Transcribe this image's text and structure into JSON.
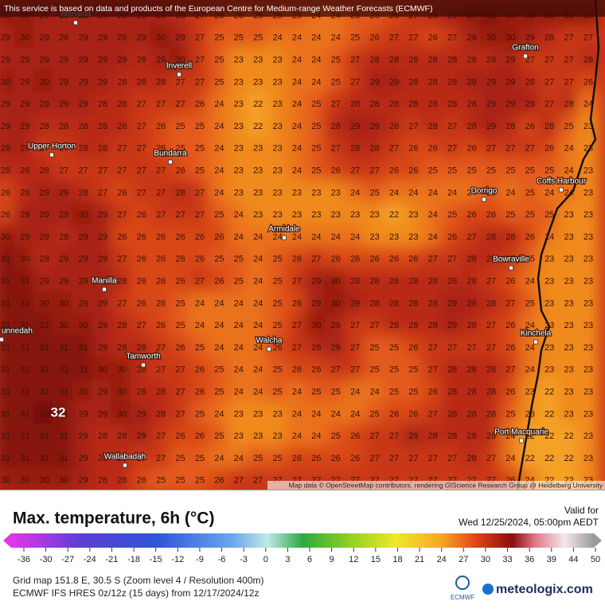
{
  "banner": "This service is based on data and products of the European Centre for Medium-range Weather Forecasts (ECMWF)",
  "attribution": "Map data © OpenStreetMap contributors, rendering GIScience Research Group @ Heidelberg University",
  "map": {
    "grid": [
      [
        30,
        30,
        29,
        29,
        29,
        29,
        29,
        29,
        29,
        28,
        27,
        26,
        25,
        25,
        25,
        25,
        24,
        24,
        25,
        25,
        26,
        27,
        28,
        29,
        30,
        31,
        30,
        30,
        30,
        30,
        30
      ],
      [
        29,
        30,
        29,
        29,
        29,
        29,
        29,
        29,
        30,
        29,
        27,
        25,
        25,
        25,
        24,
        24,
        24,
        24,
        25,
        26,
        27,
        27,
        26,
        27,
        29,
        30,
        30,
        29,
        28,
        27,
        27
      ],
      [
        29,
        29,
        29,
        29,
        29,
        29,
        29,
        28,
        29,
        30,
        27,
        25,
        23,
        23,
        23,
        24,
        24,
        25,
        27,
        28,
        28,
        28,
        28,
        28,
        28,
        28,
        29,
        27,
        27,
        27,
        28
      ],
      [
        30,
        29,
        30,
        29,
        29,
        29,
        28,
        28,
        28,
        27,
        27,
        25,
        23,
        23,
        23,
        24,
        24,
        25,
        27,
        29,
        29,
        28,
        28,
        28,
        29,
        29,
        29,
        28,
        27,
        27,
        26
      ],
      [
        29,
        29,
        29,
        29,
        29,
        28,
        28,
        27,
        27,
        27,
        26,
        24,
        23,
        22,
        23,
        24,
        25,
        27,
        28,
        28,
        28,
        28,
        28,
        28,
        28,
        29,
        29,
        29,
        27,
        28,
        24
      ],
      [
        29,
        29,
        28,
        28,
        28,
        28,
        28,
        27,
        26,
        25,
        25,
        24,
        23,
        22,
        23,
        24,
        25,
        28,
        29,
        29,
        28,
        27,
        28,
        27,
        28,
        29,
        28,
        26,
        28,
        25,
        23
      ],
      [
        29,
        29,
        27,
        27,
        28,
        28,
        27,
        27,
        26,
        25,
        25,
        24,
        23,
        23,
        23,
        24,
        25,
        27,
        28,
        28,
        27,
        26,
        26,
        27,
        26,
        27,
        27,
        27,
        26,
        24,
        23
      ],
      [
        28,
        28,
        28,
        27,
        27,
        27,
        27,
        27,
        27,
        26,
        25,
        24,
        23,
        23,
        23,
        24,
        25,
        26,
        27,
        27,
        26,
        26,
        25,
        25,
        25,
        25,
        25,
        25,
        25,
        24,
        23
      ],
      [
        26,
        28,
        29,
        29,
        28,
        27,
        26,
        27,
        27,
        28,
        27,
        24,
        23,
        23,
        23,
        23,
        23,
        23,
        24,
        25,
        24,
        24,
        24,
        24,
        24,
        25,
        24,
        25,
        24,
        24,
        23
      ],
      [
        26,
        29,
        29,
        29,
        30,
        29,
        27,
        26,
        27,
        27,
        27,
        25,
        24,
        23,
        23,
        23,
        23,
        23,
        23,
        23,
        22,
        23,
        24,
        25,
        26,
        26,
        25,
        25,
        25,
        23,
        23
      ],
      [
        30,
        29,
        29,
        28,
        29,
        29,
        26,
        26,
        26,
        26,
        26,
        26,
        24,
        24,
        24,
        24,
        24,
        24,
        24,
        23,
        23,
        23,
        24,
        26,
        27,
        28,
        28,
        26,
        24,
        23,
        23
      ],
      [
        31,
        30,
        28,
        29,
        29,
        29,
        27,
        26,
        26,
        26,
        26,
        25,
        25,
        24,
        25,
        26,
        27,
        26,
        26,
        26,
        26,
        26,
        27,
        27,
        28,
        28,
        27,
        25,
        23,
        23,
        23
      ],
      [
        31,
        31,
        29,
        29,
        29,
        29,
        28,
        26,
        26,
        26,
        27,
        26,
        25,
        24,
        25,
        27,
        29,
        30,
        28,
        28,
        28,
        28,
        28,
        28,
        28,
        27,
        26,
        24,
        23,
        23,
        23
      ],
      [
        31,
        31,
        30,
        30,
        29,
        29,
        27,
        26,
        26,
        25,
        24,
        24,
        24,
        24,
        25,
        26,
        29,
        30,
        29,
        28,
        28,
        28,
        28,
        29,
        29,
        28,
        27,
        25,
        23,
        23,
        23
      ],
      [
        31,
        31,
        31,
        30,
        30,
        29,
        28,
        27,
        26,
        25,
        24,
        24,
        24,
        24,
        25,
        27,
        30,
        29,
        27,
        27,
        28,
        28,
        28,
        29,
        28,
        27,
        26,
        24,
        23,
        23,
        23
      ],
      [
        31,
        31,
        31,
        31,
        31,
        29,
        28,
        28,
        27,
        26,
        25,
        24,
        24,
        24,
        26,
        27,
        28,
        29,
        27,
        25,
        25,
        26,
        27,
        27,
        27,
        27,
        26,
        24,
        23,
        23,
        23
      ],
      [
        31,
        31,
        31,
        31,
        31,
        30,
        30,
        28,
        27,
        27,
        26,
        25,
        24,
        24,
        25,
        26,
        26,
        27,
        27,
        25,
        25,
        25,
        27,
        28,
        28,
        28,
        27,
        24,
        23,
        23,
        23
      ],
      [
        31,
        31,
        31,
        31,
        30,
        29,
        30,
        28,
        28,
        27,
        26,
        25,
        24,
        24,
        25,
        24,
        25,
        25,
        24,
        24,
        25,
        25,
        26,
        28,
        28,
        28,
        26,
        23,
        22,
        23,
        23
      ],
      [
        31,
        31,
        32,
        31,
        29,
        29,
        30,
        29,
        28,
        27,
        25,
        24,
        23,
        23,
        23,
        24,
        24,
        24,
        24,
        25,
        26,
        26,
        27,
        28,
        28,
        28,
        25,
        23,
        22,
        23,
        23
      ],
      [
        31,
        31,
        31,
        31,
        29,
        28,
        28,
        29,
        27,
        26,
        26,
        25,
        23,
        23,
        23,
        24,
        24,
        25,
        26,
        27,
        27,
        29,
        28,
        28,
        28,
        28,
        24,
        22,
        22,
        22,
        23
      ],
      [
        31,
        31,
        31,
        31,
        29,
        28,
        28,
        27,
        27,
        25,
        25,
        24,
        24,
        25,
        25,
        26,
        26,
        26,
        26,
        27,
        27,
        27,
        27,
        27,
        28,
        27,
        24,
        22,
        22,
        22,
        23
      ],
      [
        30,
        30,
        30,
        30,
        29,
        28,
        28,
        26,
        25,
        25,
        25,
        26,
        27,
        27,
        27,
        27,
        27,
        27,
        27,
        27,
        27,
        27,
        27,
        27,
        27,
        27,
        26,
        24,
        22,
        22,
        23
      ]
    ],
    "max_label": 32,
    "places": [
      "Warialda",
      "Grafton",
      "Inverell",
      "Upper Horton",
      "Bundarra",
      "Coffs Harbour",
      "Dorrigo",
      "Armidale",
      "Bowraville",
      "Manilla",
      "unnedah",
      "Walcha",
      "Kinchela",
      "Tamworth",
      "Port Macquarie",
      "Wallabadah"
    ]
  },
  "legend": {
    "title": "Max. temperature, 6h (°C)",
    "valid_label": "Valid for",
    "valid_time": "Wed 12/25/2024, 05:00pm AEDT",
    "ticks": [
      -36,
      -30,
      -27,
      -24,
      -21,
      -18,
      -15,
      -12,
      -9,
      -6,
      -3,
      0,
      3,
      6,
      9,
      12,
      15,
      18,
      21,
      24,
      27,
      30,
      33,
      36,
      39,
      44,
      50
    ]
  },
  "footer": {
    "grid_info": "Grid map 151.8 E, 30.5 S (Zoom level 4 / Resolution 400m)",
    "model_info": "ECMWF IFS HRES 0z/12z (15 days) from 12/17/2024/12z",
    "ecmwf": "ECMWF",
    "brand": "meteologix.com"
  }
}
